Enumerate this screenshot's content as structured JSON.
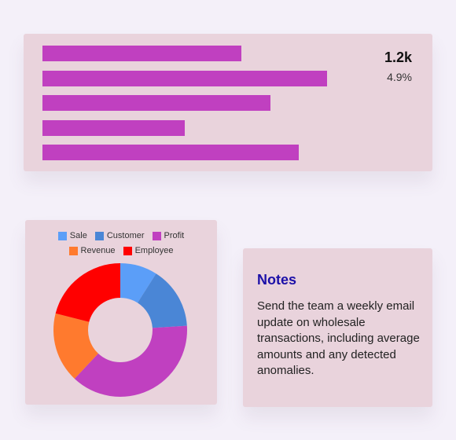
{
  "stat": {
    "value": "1.2k",
    "percent": "4.9%"
  },
  "bar_chart": {
    "type": "bar",
    "orientation": "horizontal",
    "values": [
      70,
      100,
      80,
      50,
      90
    ],
    "color": "#c040c0"
  },
  "chart_data": {
    "type": "pie",
    "style": "donut",
    "categories": [
      "Sale",
      "Customer",
      "Profit",
      "Revenue",
      "Employee"
    ],
    "values": [
      9,
      15,
      38,
      17,
      21
    ],
    "colors": [
      "#5b9ef8",
      "#4a86d6",
      "#c040c0",
      "#ff7a2e",
      "#ff0000"
    ],
    "legend": "top"
  },
  "notes": {
    "title": "Notes",
    "body": "Send the team a weekly email update on wholesale transactions, including average amounts and any detected anomalies."
  },
  "colors": {
    "page_bg": "#f4f0f9",
    "card_bg": "#e9d3dc",
    "notes_title": "#1c10a8"
  }
}
